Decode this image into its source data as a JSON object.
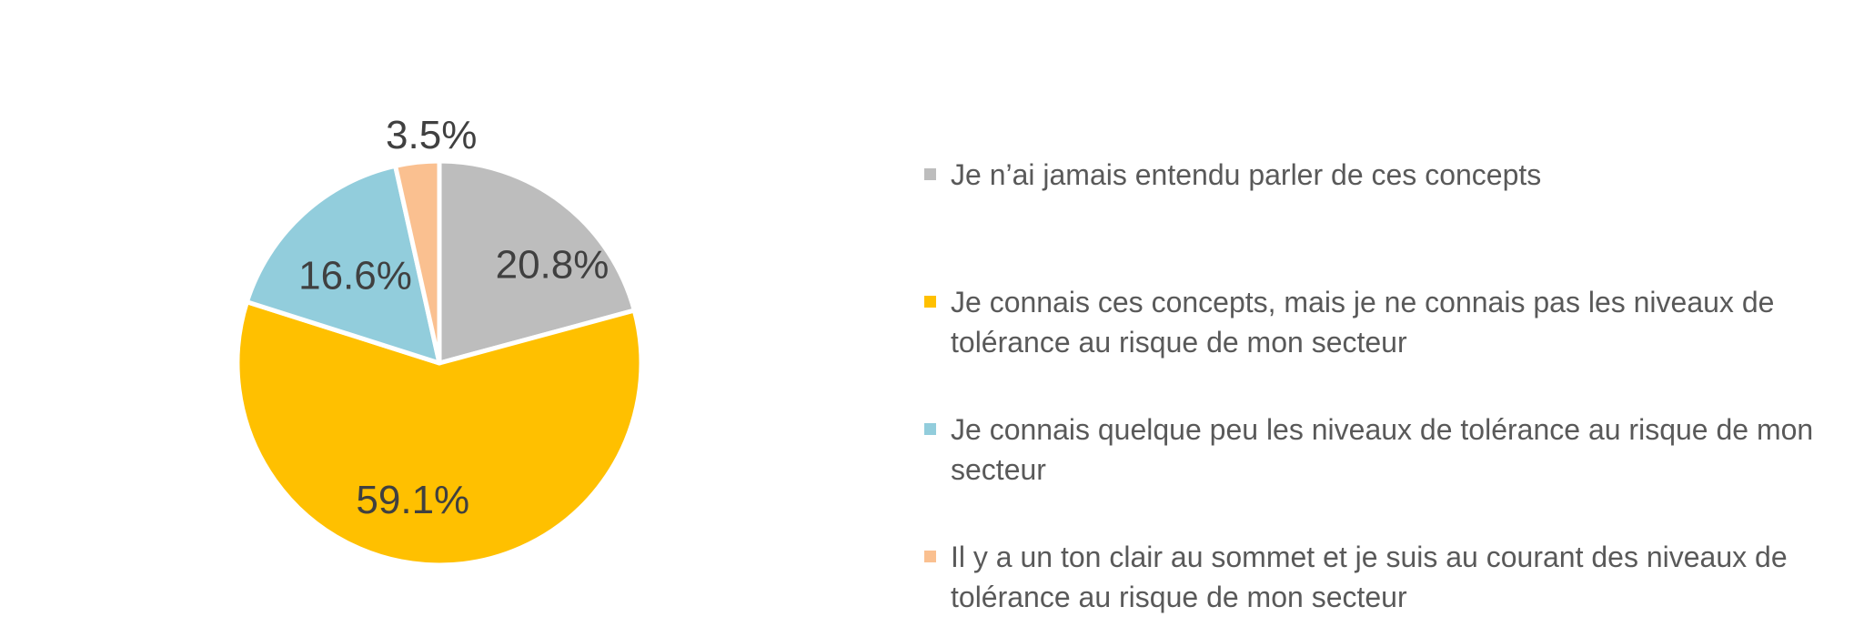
{
  "chart_data": {
    "type": "pie",
    "title": "",
    "legend_position": "right",
    "start_angle_deg": 0,
    "direction": "clockwise",
    "label_suffix": "%",
    "slices": [
      {
        "label": "Je n’ai jamais entendu parler de ces concepts",
        "value": 20.8,
        "data_label": "20.8%",
        "color": "#BDBDBD",
        "label_position": "inside"
      },
      {
        "label": "Je connais ces concepts, mais je ne connais pas les niveaux de tolérance au risque de mon secteur",
        "value": 59.1,
        "data_label": "59.1%",
        "color": "#FFC000",
        "label_position": "inside"
      },
      {
        "label": "Je connais quelque peu les niveaux de tolérance au risque de mon secteur",
        "value": 16.6,
        "data_label": "16.6%",
        "color": "#92CDDC",
        "label_position": "inside"
      },
      {
        "label": "Il y a un ton clair au sommet et je suis au courant des niveaux de tolérance au risque de mon secteur",
        "value": 3.5,
        "data_label": "3.5%",
        "color": "#FAC090",
        "label_position": "outside"
      }
    ]
  },
  "legend": {
    "items": [
      {
        "text": "Je n’ai jamais entendu parler de ces concepts",
        "color": "#BDBDBD"
      },
      {
        "text": "Je connais ces concepts, mais je ne connais pas les niveaux de\ntolérance au risque de mon secteur",
        "color": "#FFC000"
      },
      {
        "text": "Je connais quelque peu les niveaux de tolérance au risque de mon\nsecteur",
        "color": "#92CDDC"
      },
      {
        "text": "Il y a un ton clair au sommet et je suis au courant des niveaux de\ntolérance au risque de mon secteur",
        "color": "#FAC090"
      }
    ]
  },
  "colors": {
    "background": "#FFFFFF",
    "data_label": "#404040",
    "legend_text": "#595959",
    "slice_border": "#FFFFFF"
  }
}
